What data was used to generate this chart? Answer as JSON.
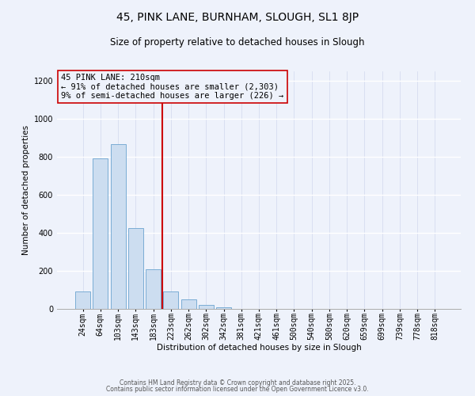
{
  "title": "45, PINK LANE, BURNHAM, SLOUGH, SL1 8JP",
  "subtitle": "Size of property relative to detached houses in Slough",
  "xlabel": "Distribution of detached houses by size in Slough",
  "ylabel": "Number of detached properties",
  "bar_labels": [
    "24sqm",
    "64sqm",
    "103sqm",
    "143sqm",
    "183sqm",
    "223sqm",
    "262sqm",
    "302sqm",
    "342sqm",
    "381sqm",
    "421sqm",
    "461sqm",
    "500sqm",
    "540sqm",
    "580sqm",
    "620sqm",
    "659sqm",
    "699sqm",
    "739sqm",
    "778sqm",
    "818sqm"
  ],
  "bar_values": [
    90,
    790,
    865,
    425,
    210,
    90,
    52,
    20,
    8,
    2,
    0,
    0,
    0,
    0,
    0,
    0,
    0,
    0,
    0,
    0,
    2
  ],
  "bar_color": "#ccddf0",
  "bar_edge_color": "#7aadd4",
  "vline_color": "#cc0000",
  "annotation_title": "45 PINK LANE: 210sqm",
  "annotation_line1": "← 91% of detached houses are smaller (2,303)",
  "annotation_line2": "9% of semi-detached houses are larger (226) →",
  "ylim": [
    0,
    1250
  ],
  "yticks": [
    0,
    200,
    400,
    600,
    800,
    1000,
    1200
  ],
  "footer1": "Contains HM Land Registry data © Crown copyright and database right 2025.",
  "footer2": "Contains public sector information licensed under the Open Government Licence v3.0.",
  "background_color": "#eef2fb",
  "grid_color": "#d0d8ee",
  "title_fontsize": 10,
  "subtitle_fontsize": 8.5,
  "axis_label_fontsize": 7.5,
  "tick_fontsize": 7,
  "annotation_fontsize": 7.5,
  "footer_fontsize": 5.5
}
